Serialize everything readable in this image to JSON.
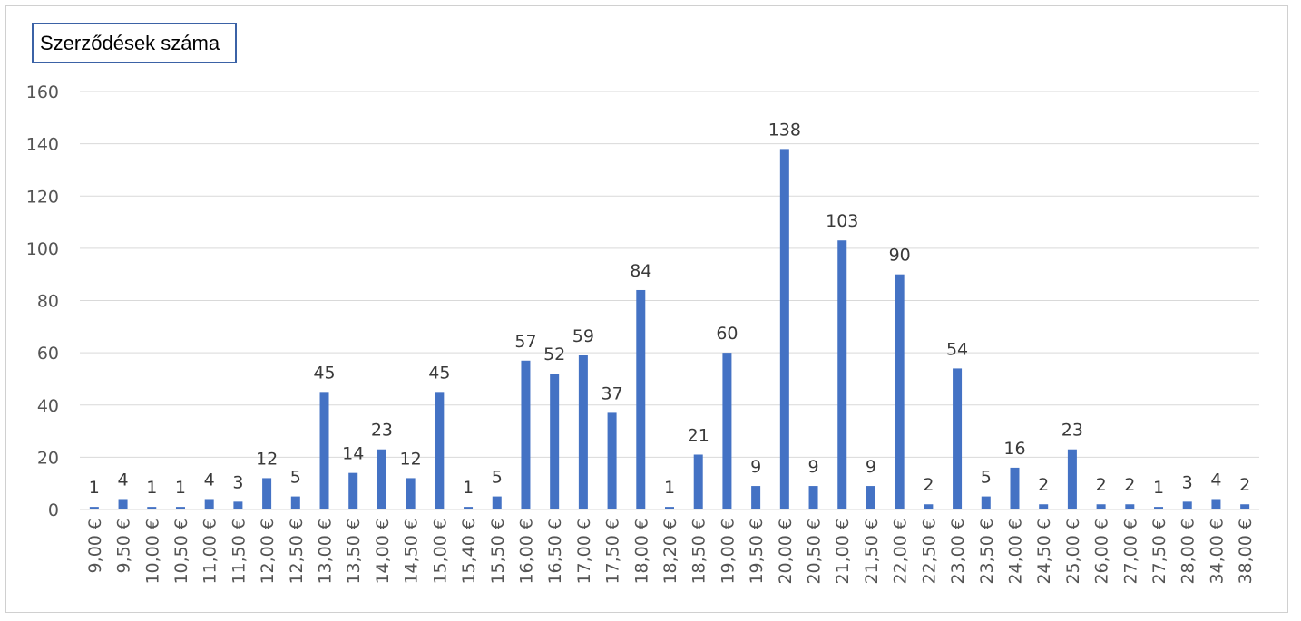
{
  "chart_data": {
    "type": "bar",
    "title": "Szerződések száma",
    "xlabel": "",
    "ylabel": "",
    "ylim": [
      0,
      160
    ],
    "yticks": [
      "0",
      "20",
      "40",
      "60",
      "80",
      "100",
      "120",
      "140",
      "160"
    ],
    "grid": true,
    "bar_color": "#4472c4",
    "categories": [
      "9,00 €",
      "9,50 €",
      "10,00 €",
      "10,50 €",
      "11,00 €",
      "11,50 €",
      "12,00 €",
      "12,50 €",
      "13,00 €",
      "13,50 €",
      "14,00 €",
      "14,50 €",
      "15,00 €",
      "15,40 €",
      "15,50 €",
      "16,00 €",
      "16,50 €",
      "17,00 €",
      "17,50 €",
      "18,00 €",
      "18,20 €",
      "18,50 €",
      "19,00 €",
      "19,50 €",
      "20,00 €",
      "20,50 €",
      "21,00 €",
      "21,50 €",
      "22,00 €",
      "22,50 €",
      "23,00 €",
      "23,50 €",
      "24,00 €",
      "24,50 €",
      "25,00 €",
      "26,00 €",
      "27,00 €",
      "27,50 €",
      "28,00 €",
      "34,00 €",
      "38,00 €"
    ],
    "values": [
      1,
      4,
      1,
      1,
      4,
      3,
      12,
      5,
      45,
      14,
      23,
      12,
      45,
      1,
      5,
      57,
      52,
      59,
      37,
      84,
      1,
      21,
      60,
      9,
      138,
      9,
      103,
      9,
      90,
      2,
      54,
      5,
      16,
      2,
      23,
      2,
      2,
      1,
      3,
      4,
      2
    ]
  }
}
